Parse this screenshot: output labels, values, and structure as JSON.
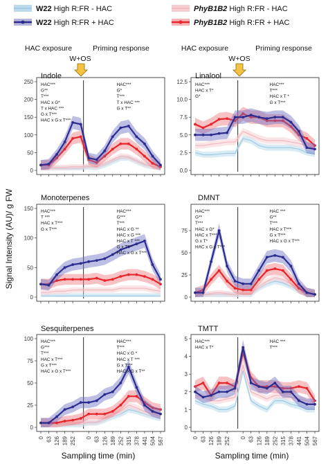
{
  "legend": {
    "entries": [
      {
        "genotype": "W22",
        "treatment": "High R:FR - HAC",
        "color": "#9ecae1",
        "style": "band"
      },
      {
        "genotype": "W22",
        "treatment": "High R:FR + HAC",
        "color": "#2b2c8f",
        "style": "line"
      },
      {
        "genotype": "PhyB1B2",
        "treatment": "High R:FR - HAC",
        "color": "#f4b6bd",
        "style": "band"
      },
      {
        "genotype": "PhyB1B2",
        "treatment": "High R:FR + HAC",
        "color": "#e8252b",
        "style": "line"
      }
    ]
  },
  "phases": {
    "exposure": "HAC exposure",
    "priming": "Priming response",
    "treatment": "W+OS",
    "arrow_color": "#f5c242"
  },
  "axes": {
    "ylabel": "Signal Intensity (AU)/ g FW",
    "xlabel": "Sampling time (min)",
    "xticks": [
      "0",
      "63",
      "126",
      "189",
      "252",
      "0",
      "63",
      "126",
      "189",
      "252",
      "315",
      "378",
      "441",
      "504",
      "567"
    ]
  },
  "chart_data": [
    {
      "type": "line",
      "panel": "Indole",
      "title": "Indole",
      "ylim": [
        0,
        250
      ],
      "yticks": [
        0,
        50,
        100,
        150,
        200,
        250
      ],
      "stats_left": [
        "HAC***",
        "G**",
        "T***",
        "HAC x G*",
        "T x HAC ***",
        "G x T***",
        "HAC x G x T***"
      ],
      "stats_right": [
        "HAC***",
        "G*",
        "T***",
        "T x HAC ***",
        "G x T**"
      ],
      "series": [
        {
          "name": "W22 High R:FR + HAC",
          "values": [
            15,
            18,
            45,
            80,
            135,
            130,
            35,
            30,
            55,
            95,
            120,
            125,
            95,
            75,
            40,
            15
          ]
        },
        {
          "name": "PhyB1B2 High R:FR + HAC",
          "values": [
            15,
            15,
            35,
            60,
            90,
            95,
            30,
            22,
            40,
            60,
            75,
            75,
            60,
            40,
            20,
            10
          ]
        },
        {
          "name": "W22 High R:FR - HAC",
          "values": [
            5,
            5,
            5,
            5,
            5,
            5,
            10,
            8,
            15,
            25,
            35,
            35,
            25,
            15,
            10,
            5
          ]
        },
        {
          "name": "PhyB1B2 High R:FR - HAC",
          "values": [
            8,
            8,
            8,
            8,
            10,
            10,
            12,
            10,
            20,
            30,
            40,
            38,
            28,
            18,
            12,
            8
          ]
        }
      ]
    },
    {
      "type": "line",
      "panel": "Linalool",
      "title": "Linalool",
      "ylim": [
        0,
        12.5
      ],
      "yticks": [
        0,
        2.5,
        5.0,
        7.5,
        10.0,
        12.5
      ],
      "stats_left": [
        "HAC***",
        "HAC x T*",
        "G*"
      ],
      "stats_right": [
        "HAC***",
        "T***",
        "HAC x T *",
        "G x T***"
      ],
      "series": [
        {
          "name": "W22 High R:FR + HAC",
          "values": [
            5,
            5,
            5,
            5.2,
            5.3,
            7.5,
            7.5,
            7.8,
            7.5,
            7.3,
            7.5,
            7.5,
            6.8,
            5.5,
            3.2,
            3
          ]
        },
        {
          "name": "PhyB1B2 High R:FR + HAC",
          "values": [
            6.5,
            6,
            6.5,
            7.2,
            7.3,
            7,
            8,
            7.5,
            7.5,
            7,
            7,
            7,
            6.2,
            5,
            4.5,
            3.5
          ]
        },
        {
          "name": "W22 High R:FR - HAC",
          "values": [
            2.5,
            2.2,
            2.2,
            2.3,
            2.4,
            2.4,
            4.5,
            4.2,
            3.5,
            3.2,
            3.2,
            3.2,
            3.2,
            3,
            2.5,
            2.3
          ]
        },
        {
          "name": "PhyB1B2 High R:FR - HAC",
          "values": [
            3.5,
            3.5,
            3.7,
            3.8,
            4,
            4,
            5.5,
            5,
            4.5,
            4.2,
            4.2,
            4.2,
            4,
            3.8,
            3.5,
            3.2
          ]
        }
      ]
    },
    {
      "type": "line",
      "panel": "Monoterpenes",
      "title": "Monoterpenes",
      "ylim": [
        0,
        150
      ],
      "yticks": [
        0,
        50,
        100,
        150
      ],
      "stats_left": [
        "HAC***",
        "T ***",
        "HAC x T***",
        "G x T***"
      ],
      "stats_right": [
        "HAC***",
        "G***",
        "T***",
        "HAC x G **",
        "HAC x G ***",
        "HAC x T ***",
        "G x T***",
        "HAC x G x T***"
      ],
      "series": [
        {
          "name": "W22 High R:FR + HAC",
          "values": [
            22,
            20,
            38,
            50,
            55,
            57,
            60,
            62,
            65,
            72,
            80,
            85,
            90,
            95,
            55,
            30
          ]
        },
        {
          "name": "PhyB1B2 High R:FR + HAC",
          "values": [
            22,
            22,
            28,
            30,
            30,
            30,
            30,
            32,
            28,
            30,
            35,
            38,
            38,
            35,
            30,
            22
          ]
        },
        {
          "name": "W22 High R:FR - HAC",
          "values": [
            2,
            2,
            2,
            2,
            2,
            2,
            2,
            2,
            2,
            2,
            2,
            2,
            2,
            2,
            2,
            2
          ]
        },
        {
          "name": "PhyB1B2 High R:FR - HAC",
          "values": [
            8,
            8,
            10,
            10,
            12,
            12,
            12,
            12,
            12,
            12,
            15,
            15,
            15,
            15,
            12,
            10
          ]
        }
      ]
    },
    {
      "type": "line",
      "panel": "DMNT",
      "title": "DMNT",
      "ylim": [
        0,
        100
      ],
      "yticks": [
        0,
        25,
        50,
        75
      ],
      "stats_left": [
        "HAC***",
        "G**",
        "T***",
        "HAC x G*",
        "HAC x T***",
        "G x T*",
        "HAC x G x T***"
      ],
      "stats_right": [
        "HAC ***",
        "G**",
        "T***",
        "HAC x T***",
        "G x T***",
        "HAC x G x T***"
      ],
      "series": [
        {
          "name": "W22 High R:FR + HAC",
          "values": [
            5,
            5,
            40,
            75,
            35,
            18,
            15,
            15,
            30,
            45,
            47,
            45,
            35,
            15,
            5,
            3
          ]
        },
        {
          "name": "PhyB1B2 High R:FR + HAC",
          "values": [
            5,
            8,
            20,
            30,
            18,
            10,
            8,
            8,
            20,
            30,
            32,
            30,
            20,
            10,
            5,
            3
          ]
        },
        {
          "name": "W22 High R:FR - HAC",
          "values": [
            2,
            2,
            3,
            3,
            3,
            2,
            3,
            3,
            10,
            15,
            18,
            16,
            12,
            7,
            3,
            2
          ]
        },
        {
          "name": "PhyB1B2 High R:FR - HAC",
          "values": [
            3,
            3,
            4,
            5,
            4,
            3,
            4,
            4,
            12,
            18,
            22,
            20,
            15,
            9,
            5,
            3
          ]
        }
      ]
    },
    {
      "type": "line",
      "panel": "Sesquiterpenes",
      "title": "Sesquiterpenes",
      "ylim": [
        0,
        100
      ],
      "yticks": [
        0,
        25,
        50,
        75,
        100
      ],
      "stats_left": [
        "HAC***",
        "G***",
        "T***",
        "HAC x T***",
        "G x T***",
        "HAC x G x T***"
      ],
      "stats_right": [
        "HAC***",
        "T***",
        "HAC x G *",
        "HAC x T ***",
        "G x T***",
        "HAC x G x T**"
      ],
      "series": [
        {
          "name": "W22 High R:FR + HAC",
          "values": [
            5,
            5,
            12,
            20,
            23,
            28,
            28,
            30,
            37,
            40,
            50,
            68,
            45,
            25,
            18,
            15
          ]
        },
        {
          "name": "PhyB1B2 High R:FR + HAC",
          "values": [
            5,
            5,
            5,
            7,
            8,
            10,
            15,
            15,
            15,
            18,
            25,
            35,
            35,
            28,
            22,
            20
          ]
        },
        {
          "name": "W22 High R:FR - HAC",
          "values": [
            3,
            3,
            3,
            3,
            3,
            3,
            5,
            5,
            8,
            12,
            15,
            20,
            18,
            15,
            12,
            10
          ]
        },
        {
          "name": "PhyB1B2 High R:FR - HAC",
          "values": [
            4,
            4,
            4,
            5,
            5,
            5,
            6,
            6,
            10,
            15,
            18,
            25,
            22,
            18,
            15,
            12
          ]
        }
      ]
    },
    {
      "type": "line",
      "panel": "TMTT",
      "title": "TMTT",
      "ylim": [
        0,
        5
      ],
      "yticks": [
        0,
        1,
        2,
        3,
        4,
        5
      ],
      "stats_left": [
        "HAC***",
        "HAC x T*"
      ],
      "stats_right": [
        "HAC ***",
        "T***"
      ],
      "series": [
        {
          "name": "W22 High R:FR + HAC",
          "values": [
            2,
            1.7,
            1.8,
            2,
            2,
            2.2,
            4.5,
            2.5,
            2.3,
            2.2,
            2.5,
            2,
            2,
            1.5,
            1.3,
            1.3
          ]
        },
        {
          "name": "PhyB1B2 High R:FR + HAC",
          "values": [
            2.3,
            2.5,
            1.8,
            2.5,
            2.5,
            2.3,
            4.2,
            2.8,
            2.3,
            2.3,
            2.3,
            2.2,
            2.2,
            2.3,
            2.2,
            1.5
          ]
        },
        {
          "name": "W22 High R:FR - HAC",
          "values": [
            1.5,
            1.3,
            1.2,
            1,
            1,
            1.2,
            3.2,
            1.5,
            1.2,
            1,
            1.5,
            1.5,
            1.3,
            1.2,
            1,
            1
          ]
        },
        {
          "name": "PhyB1B2 High R:FR - HAC",
          "values": [
            1.8,
            1.7,
            1.5,
            1.5,
            1.6,
            1.7,
            3.5,
            2,
            1.8,
            1.6,
            1.8,
            1.8,
            1.7,
            1.6,
            1.5,
            1.4
          ]
        }
      ]
    }
  ]
}
